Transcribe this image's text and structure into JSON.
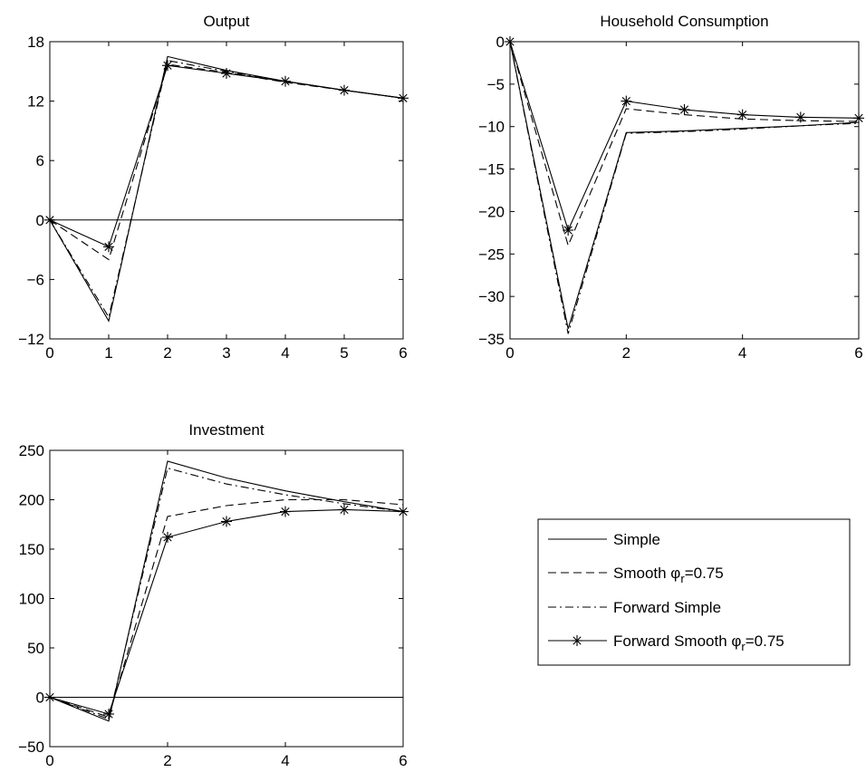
{
  "chart_data": [
    {
      "type": "line",
      "title": "Output",
      "xlabel": "",
      "ylabel": "",
      "xlim": [
        0,
        6
      ],
      "ylim": [
        -12,
        18
      ],
      "xticks": [
        "0",
        "1",
        "2",
        "3",
        "4",
        "5",
        "6"
      ],
      "yticks": [
        "−12",
        "−6",
        "0",
        "6",
        "12",
        "18"
      ],
      "xtick_values": [
        0,
        1,
        2,
        3,
        4,
        5,
        6
      ],
      "ytick_values": [
        -12,
        -6,
        0,
        6,
        12,
        18
      ],
      "zero_line": true,
      "x": [
        0,
        1,
        2,
        3,
        4,
        5,
        6
      ],
      "series": [
        {
          "name": "Simple",
          "style": "solid",
          "values": [
            0,
            -10.2,
            16.5,
            15.1,
            14.0,
            13.1,
            12.3
          ]
        },
        {
          "name": "Smooth φr=0.75",
          "style": "dashed",
          "values": [
            0,
            -4.0,
            15.7,
            14.9,
            13.9,
            13.1,
            12.3
          ]
        },
        {
          "name": "Forward Simple",
          "style": "dashdot",
          "values": [
            0,
            -9.8,
            16.1,
            15.0,
            14.0,
            13.1,
            12.3
          ]
        },
        {
          "name": "Forward Smooth φr=0.75",
          "style": "star",
          "values": [
            0,
            -2.7,
            15.6,
            14.8,
            14.0,
            13.1,
            12.3
          ]
        }
      ]
    },
    {
      "type": "line",
      "title": "Household Consumption",
      "xlabel": "",
      "ylabel": "",
      "xlim": [
        0,
        6
      ],
      "ylim": [
        -35,
        0
      ],
      "xticks": [
        "0",
        "2",
        "4",
        "6"
      ],
      "yticks": [
        "−35",
        "−30",
        "−25",
        "−20",
        "−15",
        "−10",
        "−5",
        "0"
      ],
      "xtick_values": [
        0,
        2,
        4,
        6
      ],
      "ytick_values": [
        -35,
        -30,
        -25,
        -20,
        -15,
        -10,
        -5,
        0
      ],
      "zero_line": false,
      "x": [
        0,
        1,
        2,
        3,
        4,
        5,
        6
      ],
      "series": [
        {
          "name": "Simple",
          "style": "solid",
          "values": [
            0,
            -33.8,
            -10.7,
            -10.5,
            -10.2,
            -9.9,
            -9.5
          ]
        },
        {
          "name": "Smooth φr=0.75",
          "style": "dashed",
          "values": [
            0,
            -24.0,
            -7.9,
            -8.6,
            -9.1,
            -9.3,
            -9.4
          ]
        },
        {
          "name": "Forward Simple",
          "style": "dashdot",
          "values": [
            0,
            -34.4,
            -10.8,
            -10.6,
            -10.3,
            -9.9,
            -9.6
          ]
        },
        {
          "name": "Forward Smooth φr=0.75",
          "style": "star",
          "values": [
            0,
            -22.2,
            -7.0,
            -8.0,
            -8.6,
            -8.9,
            -9.0
          ]
        }
      ]
    },
    {
      "type": "line",
      "title": "Investment",
      "xlabel": "",
      "ylabel": "",
      "xlim": [
        0,
        6
      ],
      "ylim": [
        -50,
        250
      ],
      "xticks": [
        "0",
        "2",
        "4",
        "6"
      ],
      "yticks": [
        "−50",
        "0",
        "50",
        "100",
        "150",
        "200",
        "250"
      ],
      "xtick_values": [
        0,
        2,
        4,
        6
      ],
      "ytick_values": [
        -50,
        0,
        50,
        100,
        150,
        200,
        250
      ],
      "zero_line": true,
      "x": [
        0,
        1,
        2,
        3,
        4,
        5,
        6
      ],
      "series": [
        {
          "name": "Simple",
          "style": "solid",
          "values": [
            0,
            -24.0,
            239.0,
            222.0,
            209.0,
            198.0,
            188.0
          ]
        },
        {
          "name": "Smooth φr=0.75",
          "style": "dashed",
          "values": [
            0,
            -20.0,
            183.0,
            194.0,
            200.0,
            200.0,
            195.0
          ]
        },
        {
          "name": "Forward Simple",
          "style": "dashdot",
          "values": [
            0,
            -22.0,
            232.0,
            216.0,
            205.0,
            196.0,
            188.0
          ]
        },
        {
          "name": "Forward Smooth φr=0.75",
          "style": "star",
          "values": [
            0,
            -17.0,
            162.0,
            178.0,
            188.0,
            190.0,
            188.0
          ]
        }
      ]
    }
  ],
  "legend": {
    "items": [
      {
        "style": "solid",
        "label": "Simple"
      },
      {
        "style": "dashed",
        "label": "Smooth φ",
        "sub": "r",
        "suffix": "=0.75"
      },
      {
        "style": "dashdot",
        "label": "Forward Simple"
      },
      {
        "style": "star",
        "label": "Forward Smooth φ",
        "sub": "r",
        "suffix": "=0.75"
      }
    ]
  }
}
